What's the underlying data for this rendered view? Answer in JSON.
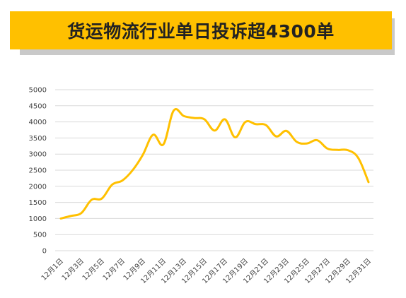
{
  "header": {
    "title": "货运物流行业单日投诉超4300单"
  },
  "colors": {
    "banner": "#ffc000",
    "banner_shadow": "#c9c9c9",
    "line": "#ffc000",
    "grid": "#d9d9d9"
  },
  "chart_data": {
    "type": "line",
    "title": "",
    "xlabel": "",
    "ylabel": "",
    "ylim": [
      0,
      5000
    ],
    "yticks": [
      0,
      500,
      1000,
      1500,
      2000,
      2500,
      3000,
      3500,
      4000,
      4500,
      5000
    ],
    "grid": true,
    "legend": "none",
    "x": [
      "12月1日",
      "12月2日",
      "12月3日",
      "12月4日",
      "12月5日",
      "12月6日",
      "12月7日",
      "12月8日",
      "12月9日",
      "12月10日",
      "12月11日",
      "12月12日",
      "12月13日",
      "12月14日",
      "12月15日",
      "12月16日",
      "12月17日",
      "12月18日",
      "12月19日",
      "12月20日",
      "12月21日",
      "12月22日",
      "12月23日",
      "12月24日",
      "12月25日",
      "12月26日",
      "12月27日",
      "12月28日",
      "12月29日",
      "12月30日",
      "12月31日"
    ],
    "xtick_labels": [
      "12月1日",
      "12月3日",
      "12月5日",
      "12月7日",
      "12月9日",
      "12月11日",
      "12月13日",
      "12月15日",
      "12月17日",
      "12月19日",
      "12月21日",
      "12月23日",
      "12月25日",
      "12月27日",
      "12月29日",
      "12月31日"
    ],
    "series": [
      {
        "values": [
          1000,
          1080,
          1170,
          1580,
          1620,
          2050,
          2180,
          2500,
          2980,
          3600,
          3300,
          4350,
          4180,
          4120,
          4080,
          3730,
          4080,
          3520,
          4000,
          3930,
          3900,
          3550,
          3720,
          3380,
          3330,
          3430,
          3170,
          3130,
          3120,
          2880,
          2130
        ]
      }
    ]
  }
}
